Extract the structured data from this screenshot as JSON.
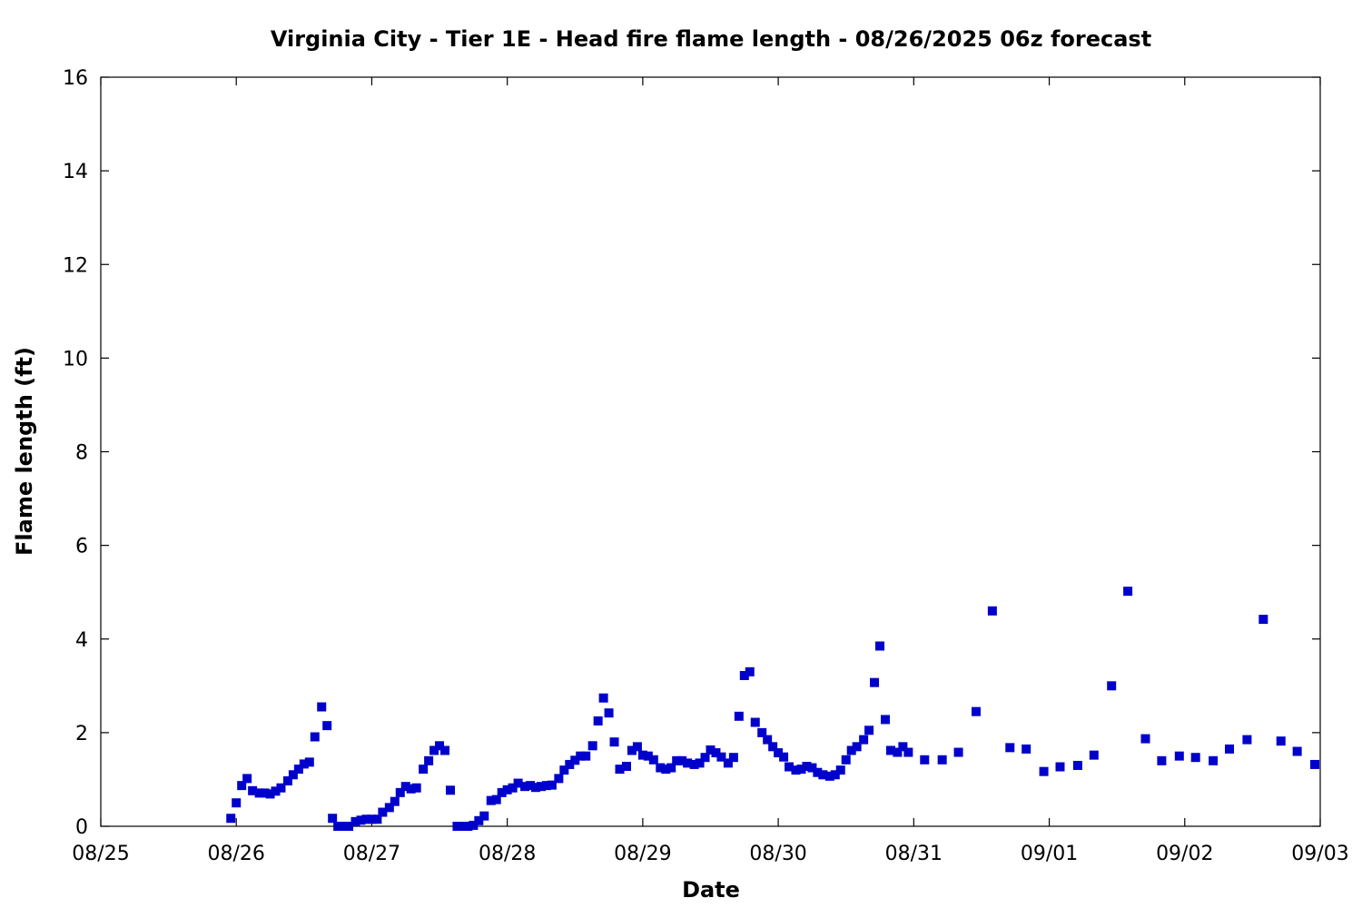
{
  "chart_data": {
    "type": "scatter",
    "title": "Virginia City - Tier 1E - Head fire flame length - 08/26/2025 06z forecast",
    "xlabel": "Date",
    "ylabel": "Flame length (ft)",
    "x_tick_labels": [
      "08/25",
      "08/26",
      "08/27",
      "08/28",
      "08/29",
      "08/30",
      "08/31",
      "09/01",
      "09/02",
      "09/03"
    ],
    "y_tick_labels": [
      "0",
      "2",
      "4",
      "6",
      "8",
      "10",
      "12",
      "14",
      "16"
    ],
    "xlim_days": [
      0,
      9
    ],
    "ylim": [
      0,
      16
    ],
    "grid": false,
    "marker_color": "#0000cc",
    "series": [
      {
        "x_days_since_0825": [
          0.96,
          1.0,
          1.04,
          1.08,
          1.12,
          1.17,
          1.21,
          1.25,
          1.29,
          1.33,
          1.38,
          1.42,
          1.46,
          1.5,
          1.54,
          1.58,
          1.63,
          1.67,
          1.71,
          1.75,
          1.79,
          1.83,
          1.88,
          1.92,
          1.96,
          2.0,
          2.04,
          2.08,
          2.13,
          2.17,
          2.21,
          2.25,
          2.29,
          2.33,
          2.38,
          2.42,
          2.46,
          2.5,
          2.54,
          2.58,
          2.63,
          2.67,
          2.71,
          2.75,
          2.79,
          2.83,
          2.88,
          2.92,
          2.96,
          3.0,
          3.04,
          3.08,
          3.13,
          3.17,
          3.21,
          3.25,
          3.29,
          3.33,
          3.38,
          3.42,
          3.46,
          3.5,
          3.54,
          3.58,
          3.63,
          3.67,
          3.71,
          3.75,
          3.79,
          3.83,
          3.88,
          3.92,
          3.96,
          4.0,
          4.04,
          4.08,
          4.13,
          4.17,
          4.21,
          4.25,
          4.29,
          4.33,
          4.38,
          4.42,
          4.46,
          4.5,
          4.54,
          4.58,
          4.63,
          4.67,
          4.71,
          4.75,
          4.79,
          4.83,
          4.88,
          4.92,
          4.96,
          5.0,
          5.04,
          5.08,
          5.13,
          5.17,
          5.21,
          5.25,
          5.29,
          5.33,
          5.38,
          5.42,
          5.46,
          5.5,
          5.54,
          5.58,
          5.63,
          5.67,
          5.71,
          5.75,
          5.79,
          5.83,
          5.88,
          5.92,
          5.96,
          6.08,
          6.21,
          6.33,
          6.46,
          6.58,
          6.71,
          6.83,
          6.96,
          7.08,
          7.21,
          7.33,
          7.46,
          7.58,
          7.71,
          7.83,
          7.96,
          8.08,
          8.21,
          8.33,
          8.46,
          8.58,
          8.71,
          8.83,
          8.96
        ],
        "y": [
          0.17,
          0.5,
          0.87,
          1.02,
          0.76,
          0.71,
          0.71,
          0.69,
          0.75,
          0.82,
          0.97,
          1.1,
          1.22,
          1.33,
          1.37,
          1.91,
          2.55,
          2.15,
          0.17,
          0.0,
          0.0,
          0.0,
          0.1,
          0.13,
          0.15,
          0.15,
          0.15,
          0.3,
          0.4,
          0.53,
          0.72,
          0.85,
          0.8,
          0.82,
          1.22,
          1.4,
          1.62,
          1.72,
          1.62,
          0.77,
          0.0,
          0.0,
          0.0,
          0.02,
          0.12,
          0.22,
          0.55,
          0.57,
          0.72,
          0.78,
          0.82,
          0.92,
          0.85,
          0.87,
          0.83,
          0.85,
          0.87,
          0.88,
          1.02,
          1.2,
          1.32,
          1.41,
          1.5,
          1.5,
          1.72,
          2.25,
          2.74,
          2.42,
          1.8,
          1.22,
          1.28,
          1.62,
          1.7,
          1.52,
          1.5,
          1.42,
          1.25,
          1.22,
          1.25,
          1.4,
          1.4,
          1.35,
          1.32,
          1.35,
          1.47,
          1.63,
          1.57,
          1.48,
          1.35,
          1.47,
          2.35,
          3.22,
          3.3,
          2.22,
          2.0,
          1.85,
          1.7,
          1.57,
          1.48,
          1.27,
          1.2,
          1.22,
          1.28,
          1.25,
          1.15,
          1.1,
          1.07,
          1.1,
          1.2,
          1.42,
          1.62,
          1.7,
          1.85,
          2.05,
          3.07,
          3.85,
          2.28,
          1.62,
          1.58,
          1.7,
          1.58,
          1.42,
          1.42,
          1.58,
          2.45,
          4.6,
          1.68,
          1.65,
          1.17,
          1.27,
          1.3,
          1.52,
          3.0,
          5.02,
          1.87,
          1.4,
          1.5,
          1.47,
          1.4,
          1.65,
          1.85,
          4.42,
          1.82,
          1.6,
          1.32
        ]
      }
    ]
  }
}
